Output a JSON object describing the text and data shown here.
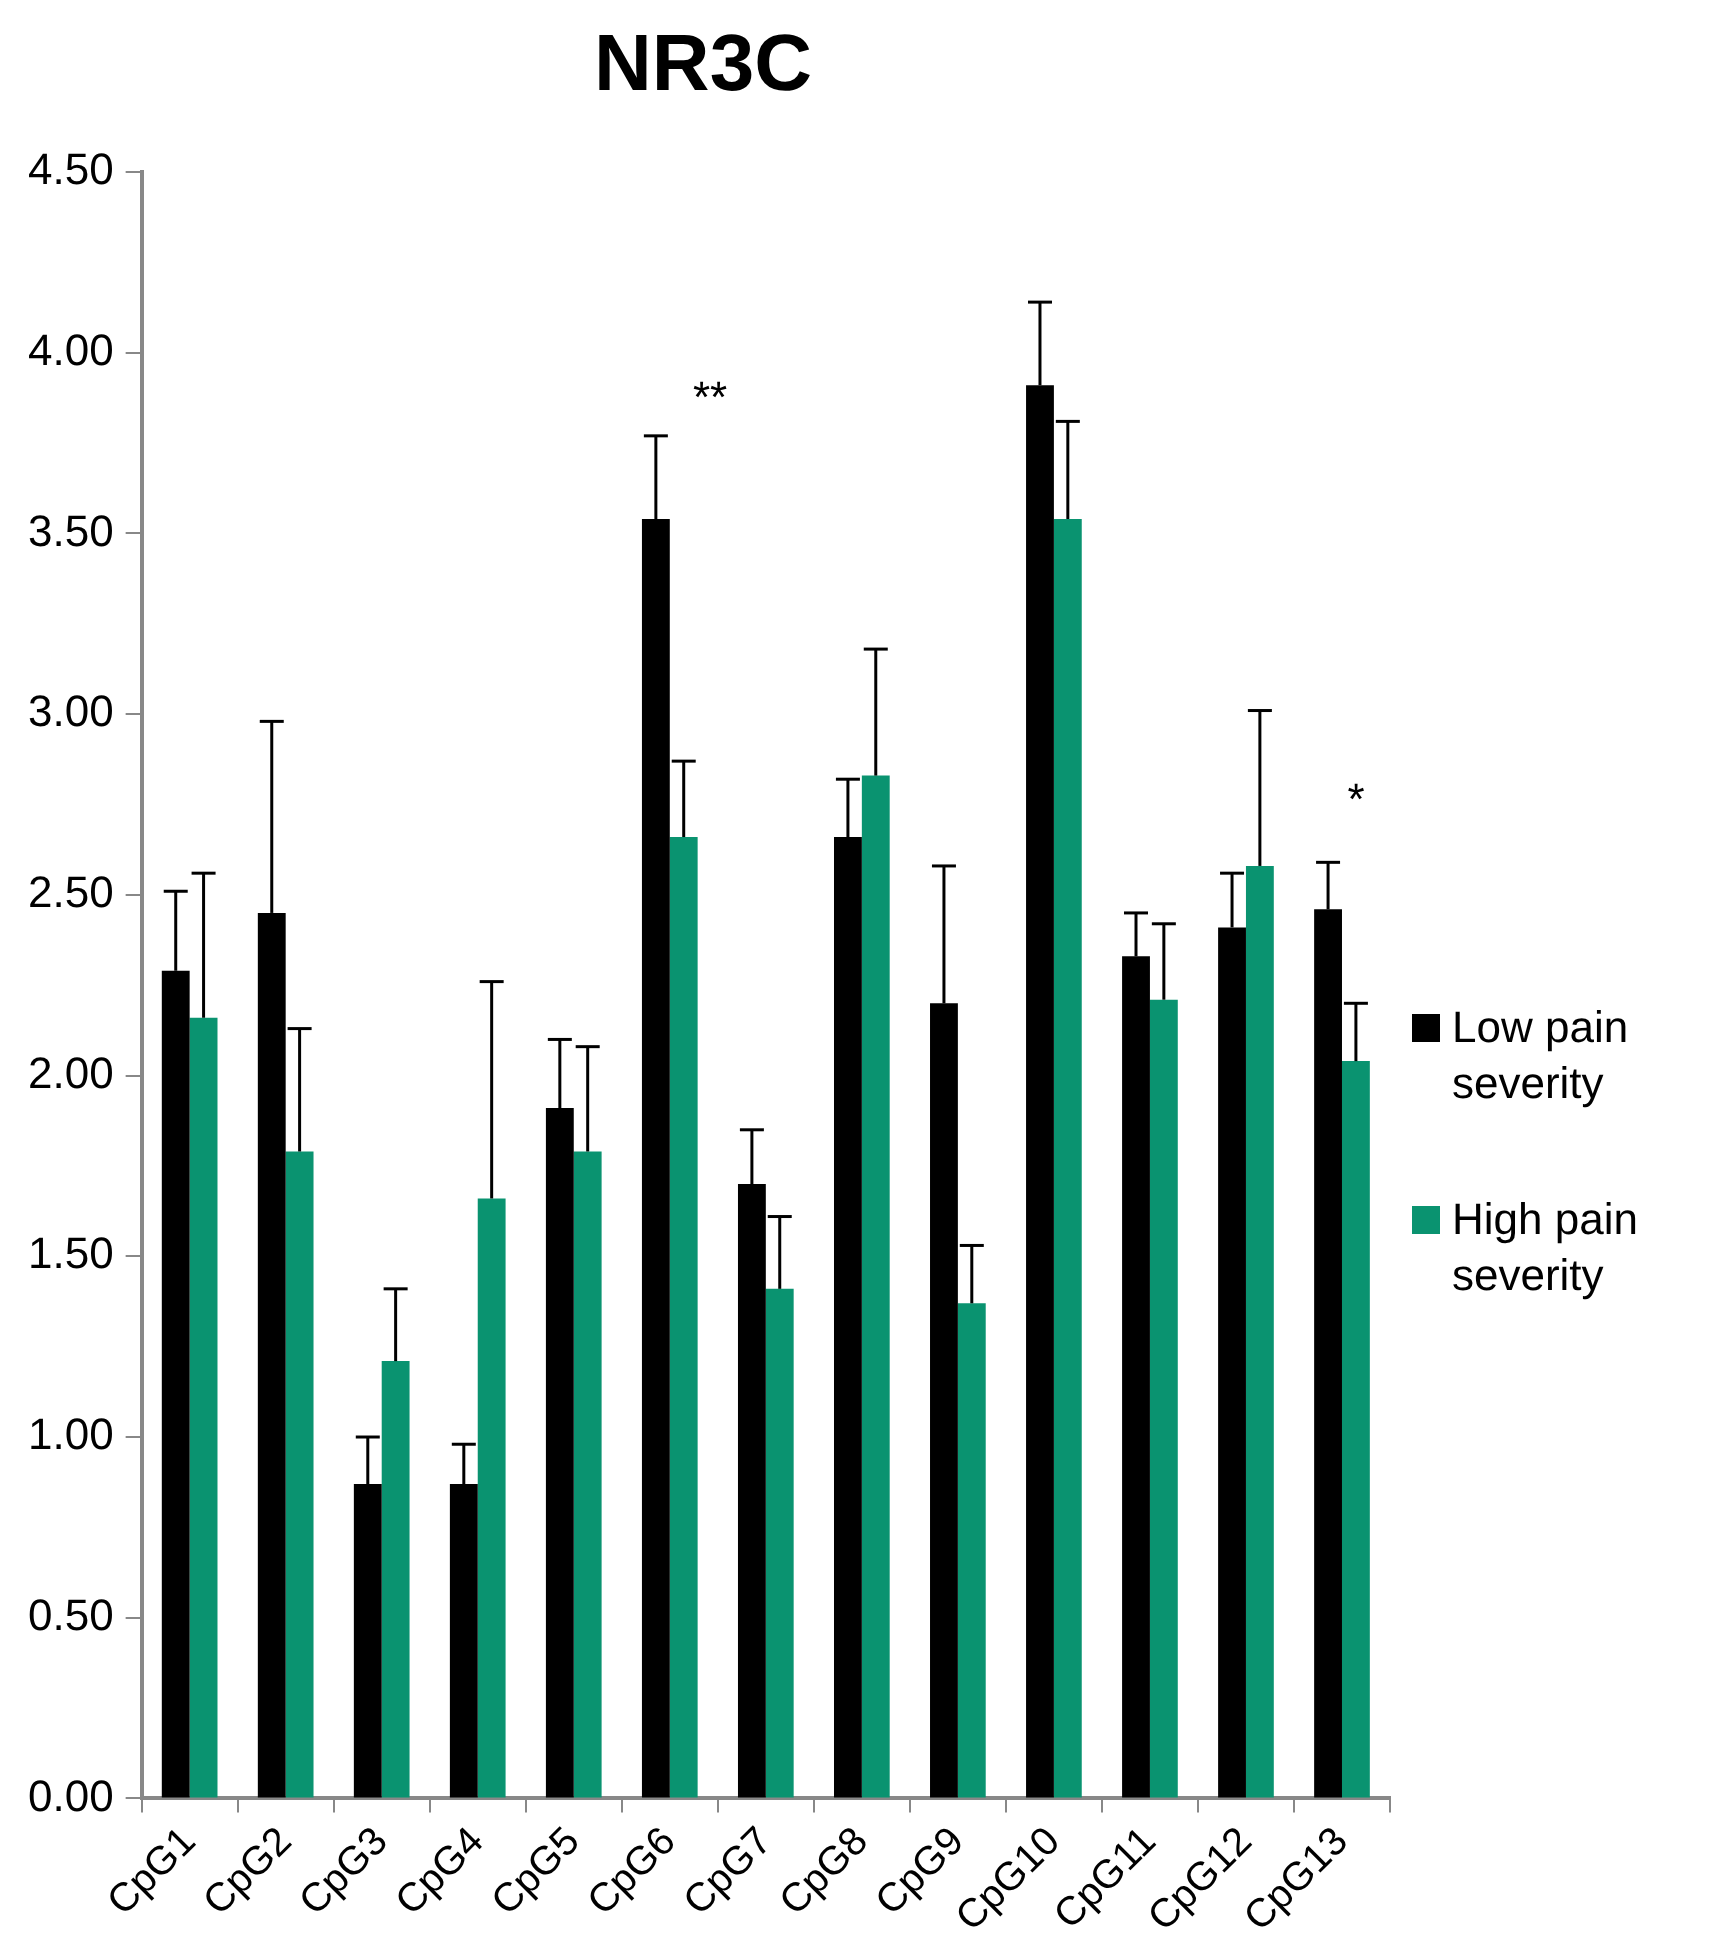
{
  "chart_data": {
    "type": "bar",
    "title": "NR3C",
    "categories": [
      "CpG1",
      "CpG2",
      "CpG3",
      "CpG4",
      "CpG5",
      "CpG6",
      "CpG7",
      "CpG8",
      "CpG9",
      "CpG10",
      "CpG11",
      "CpG12",
      "CpG13"
    ],
    "series": [
      {
        "name": "Low pain severity",
        "color": "#000000",
        "values": [
          2.29,
          2.45,
          0.87,
          0.87,
          1.91,
          3.54,
          1.7,
          2.66,
          2.2,
          3.91,
          2.33,
          2.41,
          2.46
        ],
        "errors": [
          [
            2.29,
            2.51
          ],
          [
            2.45,
            2.98
          ],
          [
            0.87,
            1.0
          ],
          [
            0.87,
            0.98
          ],
          [
            1.91,
            2.1
          ],
          [
            3.54,
            3.77
          ],
          [
            1.7,
            1.85
          ],
          [
            2.66,
            2.82
          ],
          [
            2.2,
            2.58
          ],
          [
            3.91,
            4.14
          ],
          [
            2.33,
            2.45
          ],
          [
            2.41,
            2.56
          ],
          [
            2.46,
            2.59
          ]
        ]
      },
      {
        "name": "High pain severity",
        "color": "#0a9370",
        "values": [
          2.16,
          1.79,
          1.21,
          1.66,
          1.79,
          2.66,
          1.41,
          2.83,
          1.37,
          3.54,
          2.21,
          2.58,
          2.04
        ],
        "errors": [
          [
            2.16,
            2.56
          ],
          [
            1.79,
            2.13
          ],
          [
            1.21,
            1.41
          ],
          [
            1.66,
            2.26
          ],
          [
            1.79,
            2.08
          ],
          [
            2.66,
            2.87
          ],
          [
            1.41,
            1.61
          ],
          [
            2.83,
            3.18
          ],
          [
            1.37,
            1.53
          ],
          [
            3.54,
            3.81
          ],
          [
            2.21,
            2.42
          ],
          [
            2.58,
            3.01
          ],
          [
            2.04,
            2.2
          ]
        ]
      }
    ],
    "ylim": [
      0,
      4.5
    ],
    "yticks": [
      {
        "value": 0,
        "label": "0.00"
      },
      {
        "value": 0.5,
        "label": "0.50"
      },
      {
        "value": 1,
        "label": "1.00"
      },
      {
        "value": 1.5,
        "label": "1.50"
      },
      {
        "value": 2,
        "label": "2.00"
      },
      {
        "value": 2.5,
        "label": "2.50"
      },
      {
        "value": 3,
        "label": "3.00"
      },
      {
        "value": 3.5,
        "label": "3.50"
      },
      {
        "value": 4,
        "label": "4.00"
      },
      {
        "value": 4.5,
        "label": "4.50"
      }
    ],
    "annotations": [
      "**",
      "*"
    ],
    "grid": false,
    "legend": "right"
  }
}
